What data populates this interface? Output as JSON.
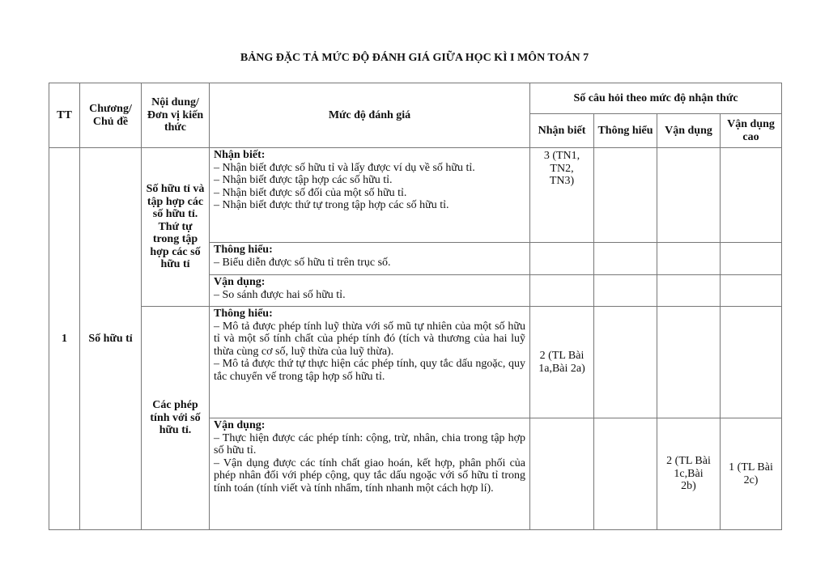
{
  "title": "BẢNG ĐẶC TẢ MỨC ĐỘ ĐÁNH GIÁ GIỮA HỌC KÌ I MÔN TOÁN 7",
  "headers": {
    "tt": "TT",
    "chapter": "Chương/ Chủ đề",
    "content": "Nội dung/Đơn vị kiến thức",
    "level": "Mức độ đánh giá",
    "count_group": "Số câu hỏi theo mức độ nhận thức",
    "nhan_biet": "Nhận biết",
    "thong_hieu": "Thông hiểu",
    "van_dung": "Vận dụng",
    "van_dung_cao": "Vận dụng cao"
  },
  "row": {
    "tt": "1",
    "chapter": "Số hữu tỉ",
    "units": [
      {
        "name": "Số hữu tỉ và tập hợp các số hữu tỉ. Thứ tự trong tập hợp các số hữu tỉ",
        "levels": [
          {
            "label": "Nhận biết:",
            "lines": [
              "– Nhận biết được số hữu tỉ và lấy được ví dụ về số hữu tỉ.",
              "– Nhận biết được tập hợp các số hữu tỉ.",
              "– Nhận biết được số đối của một số hữu tỉ.",
              "– Nhận biết được thứ tự trong tập hợp các số hữu tỉ."
            ],
            "nb": "3 (TN1, TN2, TN3)",
            "th": "",
            "vd": "",
            "vdc": ""
          },
          {
            "label": "Thông hiểu:",
            "lines": [
              "– Biểu diễn được số hữu tỉ trên trục số."
            ],
            "nb": "",
            "th": "",
            "vd": "",
            "vdc": ""
          },
          {
            "label": "Vận dụng:",
            "lines": [
              "– So sánh được hai số hữu tỉ."
            ],
            "nb": "",
            "th": "",
            "vd": "",
            "vdc": ""
          }
        ]
      },
      {
        "name": "Các phép tính với số hữu tỉ.",
        "levels": [
          {
            "label": "Thông hiểu:",
            "lines": [
              "– Mô tả được phép tính luỹ thừa với số mũ tự nhiên của một số hữu tỉ và một số tính chất của phép tính đó (tích và thương của hai luỹ thừa cùng cơ số, luỹ thừa của luỹ thừa).",
              "– Mô tả được thứ tự thực hiện các phép tính, quy tắc dấu ngoặc, quy tắc chuyển vế trong tập hợp số hữu tỉ."
            ],
            "nb": "2 (TL Bài 1a,Bài 2a)",
            "th": "",
            "vd": "",
            "vdc": ""
          },
          {
            "label": "Vận dụng:",
            "lines": [
              "– Thực hiện được các phép tính: cộng, trừ, nhân, chia trong tập hợp số hữu tỉ.",
              "– Vận dụng được các tính chất giao hoán, kết hợp, phân phối của phép nhân đối với phép cộng, quy tắc dấu ngoặc với số hữu tỉ trong tính toán (tính viết và tính nhẩm, tính nhanh một cách hợp lí)."
            ],
            "nb": "",
            "th": "",
            "vd": "2 (TL Bài 1c,Bài 2b)",
            "vdc": "1 (TL Bài 2c)"
          }
        ]
      }
    ]
  }
}
